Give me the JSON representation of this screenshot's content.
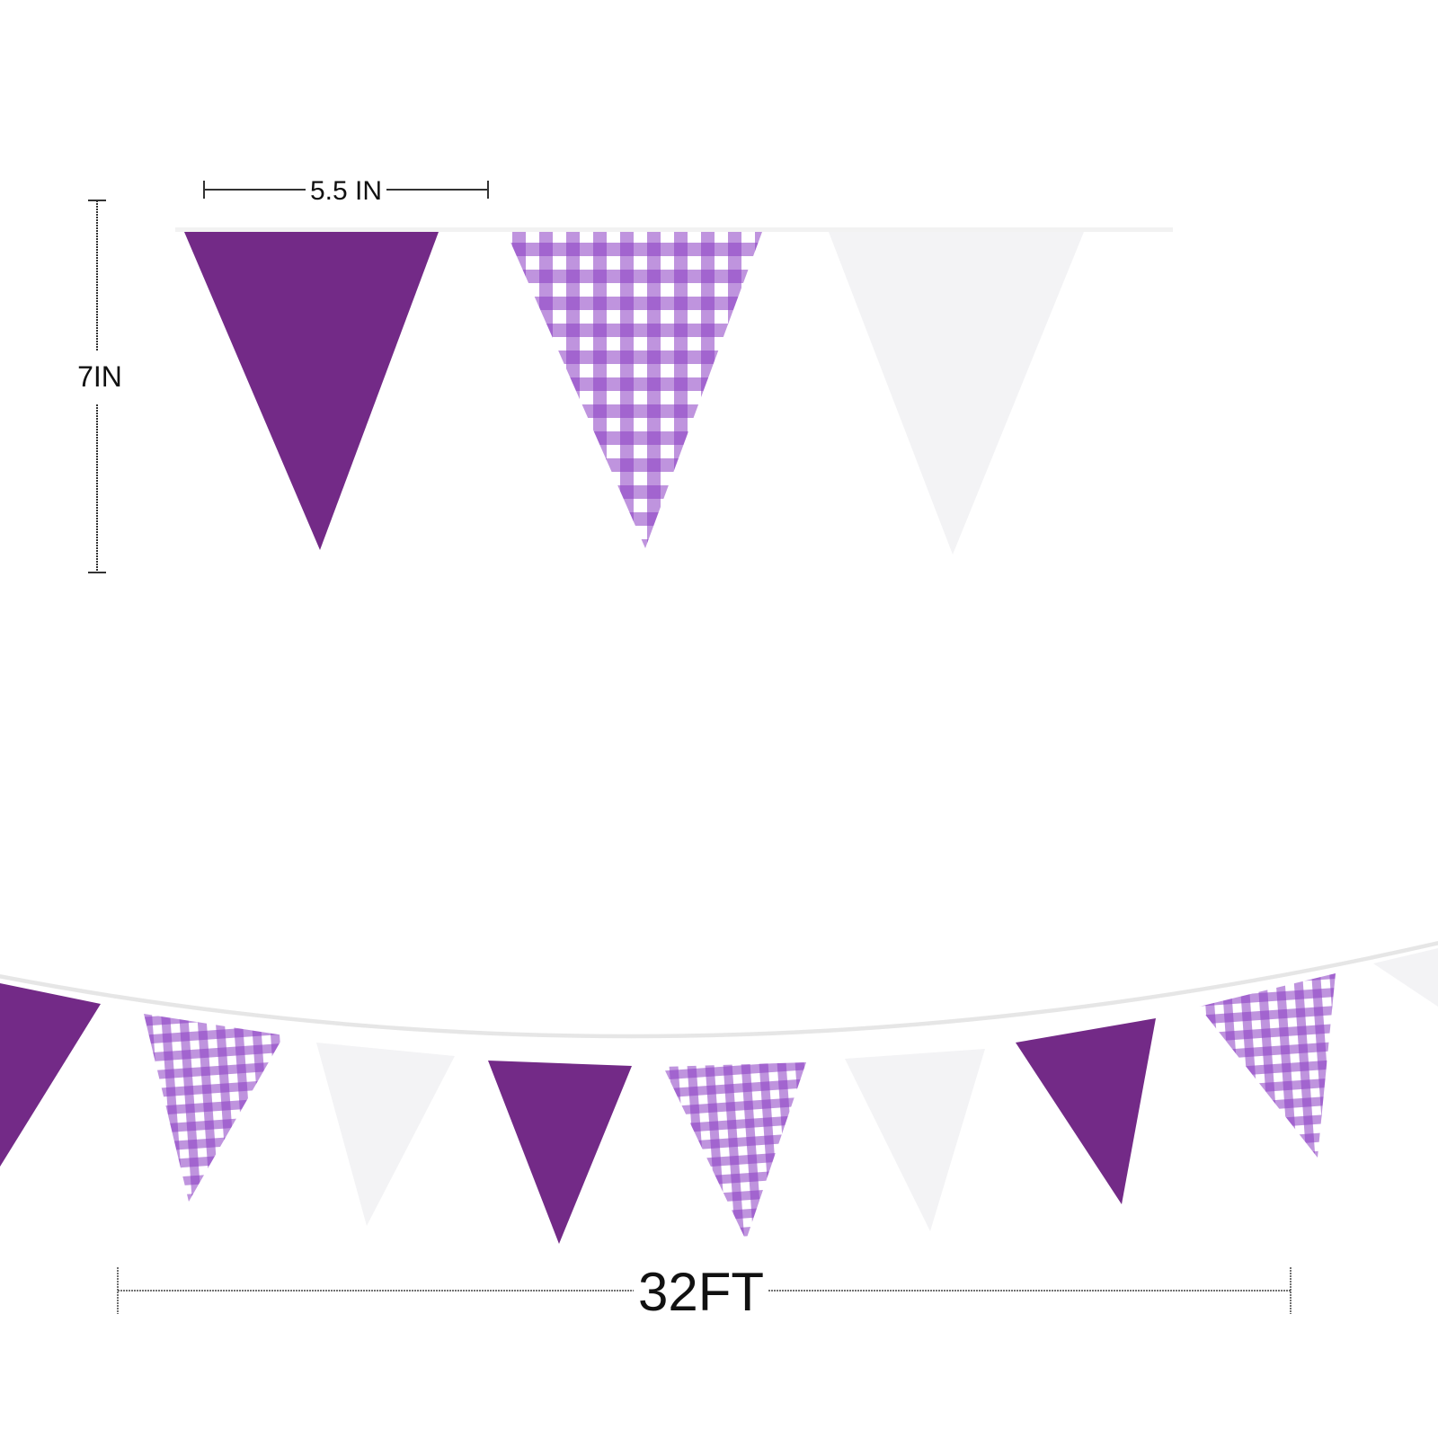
{
  "colors": {
    "solid_purple": "#732a87",
    "gingham_purple": "#8b3cc2",
    "white_flag": "#f3f3f5",
    "dimension_line": "#333333"
  },
  "dimensions": {
    "flag_width": "5.5 IN",
    "flag_height": "7IN",
    "total_length": "32FT"
  },
  "flags_top": [
    "solid-purple",
    "gingham",
    "white"
  ],
  "flags_bottom": [
    "solid-purple",
    "gingham",
    "white",
    "solid-purple",
    "gingham",
    "white",
    "solid-purple",
    "gingham",
    "white"
  ]
}
